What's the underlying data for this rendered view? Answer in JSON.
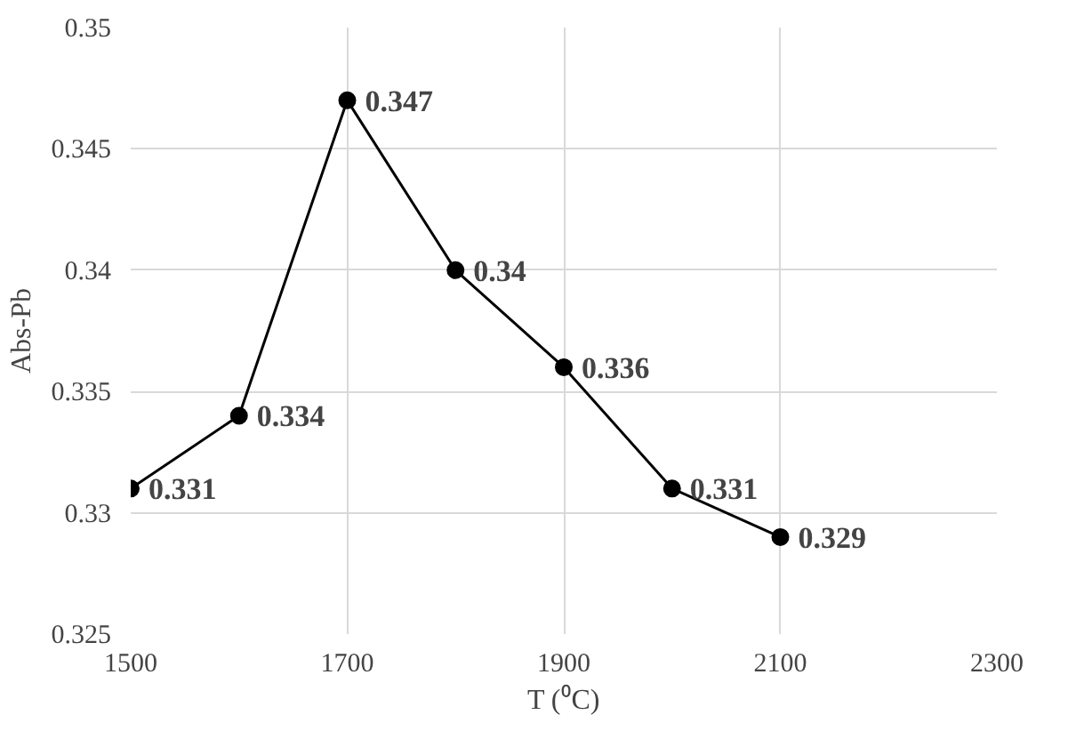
{
  "chart_data": {
    "type": "line",
    "xlabel": "T (⁰C)",
    "ylabel": "Abs-Pb",
    "x": [
      1500,
      1600,
      1700,
      1800,
      1900,
      2000,
      2100
    ],
    "series": [
      {
        "color": "#000000",
        "values": [
          0.331,
          0.334,
          0.347,
          0.34,
          0.336,
          0.331,
          0.329
        ]
      }
    ],
    "xlim": [
      1500,
      2300
    ],
    "xticks": [
      1500,
      1700,
      1900,
      2100,
      2300
    ],
    "ylim": [
      0.325,
      0.35
    ],
    "yticks": [
      0.325,
      0.33,
      0.335,
      0.34,
      0.345,
      0.35
    ],
    "grid": true,
    "marker": "circle",
    "line_style": "solid",
    "data_labels": true
  }
}
